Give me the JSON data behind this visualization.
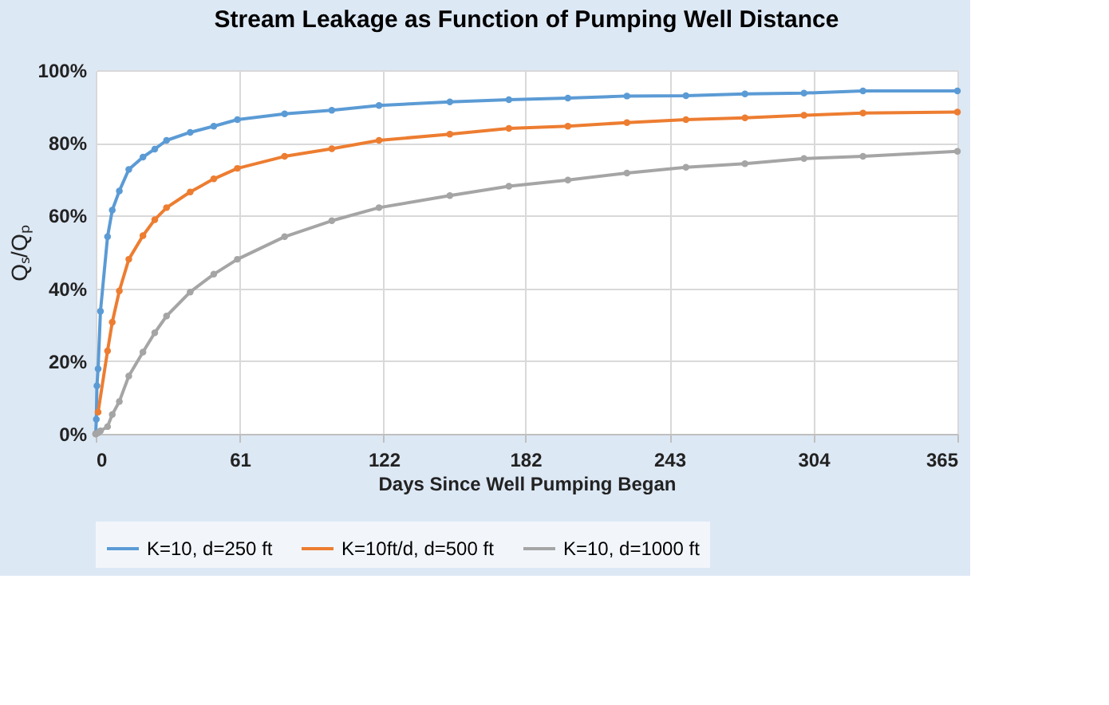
{
  "chart_data": {
    "type": "line",
    "title": "Stream Leakage as Function of Pumping Well Distance",
    "xlabel": "Days Since Well Pumping Began",
    "ylabel": "Qₛ/Qₚ",
    "xlim": [
      0,
      365
    ],
    "xticks": [
      0,
      61,
      122,
      182,
      243,
      304,
      365
    ],
    "ylim": [
      0,
      100
    ],
    "yticks": [
      {
        "value": 0,
        "label": "0%"
      },
      {
        "value": 20,
        "label": "20%"
      },
      {
        "value": 40,
        "label": "40%"
      },
      {
        "value": 60,
        "label": "60%"
      },
      {
        "value": 80,
        "label": "80%"
      },
      {
        "value": 100,
        "label": "100%"
      }
    ],
    "grid": true,
    "legend": "bottom",
    "marker": "circle",
    "line_style": "solid",
    "series": [
      {
        "name": "K=10, d=250 ft",
        "color": "#5b9bd5",
        "x": [
          0,
          0.25,
          0.5,
          1,
          2,
          5,
          7,
          10,
          14,
          20,
          25,
          30,
          40,
          50,
          60,
          80,
          100,
          120,
          150,
          175,
          200,
          225,
          250,
          275,
          300,
          325,
          365
        ],
        "values": [
          0,
          4.0,
          13.2,
          17.9,
          33.7,
          54.2,
          61.5,
          66.8,
          72.7,
          76.1,
          78.3,
          80.7,
          82.9,
          84.6,
          86.4,
          88.0,
          89.0,
          90.3,
          91.3,
          91.9,
          92.3,
          92.9,
          93.0,
          93.5,
          93.7,
          94.3,
          94.3
        ]
      },
      {
        "name": "K=10ft/d, d=500 ft",
        "color": "#ed7d31",
        "x": [
          0,
          0.5,
          1,
          5,
          7,
          10,
          14,
          20,
          25,
          30,
          40,
          50,
          60,
          80,
          100,
          120,
          150,
          175,
          200,
          225,
          250,
          275,
          300,
          325,
          365
        ],
        "values": [
          0,
          null,
          6.0,
          22.8,
          30.7,
          39.3,
          48.0,
          54.5,
          58.9,
          62.2,
          66.5,
          70.1,
          73.0,
          76.3,
          78.4,
          80.7,
          82.4,
          84.0,
          84.6,
          85.6,
          86.4,
          86.9,
          87.6,
          88.2,
          88.5
        ]
      },
      {
        "name": "K=10, d=1000 ft",
        "color": "#a5a5a5",
        "x": [
          0,
          1,
          2,
          5,
          7,
          10,
          14,
          20,
          25,
          30,
          40,
          50,
          60,
          80,
          100,
          120,
          150,
          175,
          200,
          225,
          250,
          275,
          300,
          325,
          365
        ],
        "values": [
          0,
          0.3,
          0.8,
          2.0,
          5.3,
          8.9,
          15.9,
          22.5,
          27.8,
          32.4,
          39.0,
          43.9,
          48.0,
          54.2,
          58.6,
          62.2,
          65.5,
          68.1,
          69.8,
          71.7,
          73.3,
          74.3,
          75.7,
          76.3,
          77.7
        ]
      }
    ]
  }
}
